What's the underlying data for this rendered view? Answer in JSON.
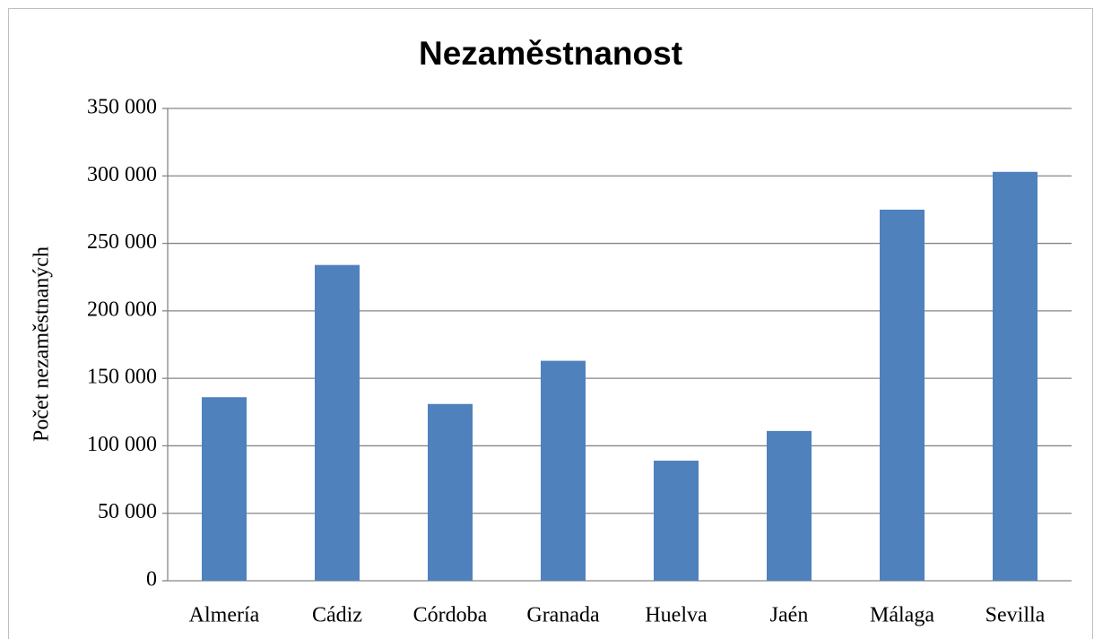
{
  "chart_data": {
    "type": "bar",
    "title": "Nezaměstnanost",
    "y_axis_label": "Počet nezaměstnaných",
    "categories": [
      "Almería",
      "Cádiz",
      "Córdoba",
      "Granada",
      "Huelva",
      "Jaén",
      "Málaga",
      "Sevilla"
    ],
    "values": [
      136000,
      234000,
      131000,
      163000,
      89000,
      111000,
      275000,
      303000
    ],
    "color": "#4f81bd",
    "ylim": [
      0,
      350000
    ],
    "yticks": [
      0,
      {
        "value": 50000,
        "label": "50 000"
      },
      {
        "value": 100000,
        "label": "100 000"
      },
      {
        "value": 150000,
        "label": "150 000"
      },
      {
        "value": 200000,
        "label": "200 000"
      },
      {
        "value": 250000,
        "label": "250 000"
      },
      {
        "value": 300000,
        "label": "300 000"
      },
      {
        "value": 350000,
        "label": "350 000"
      }
    ],
    "grid": true
  }
}
